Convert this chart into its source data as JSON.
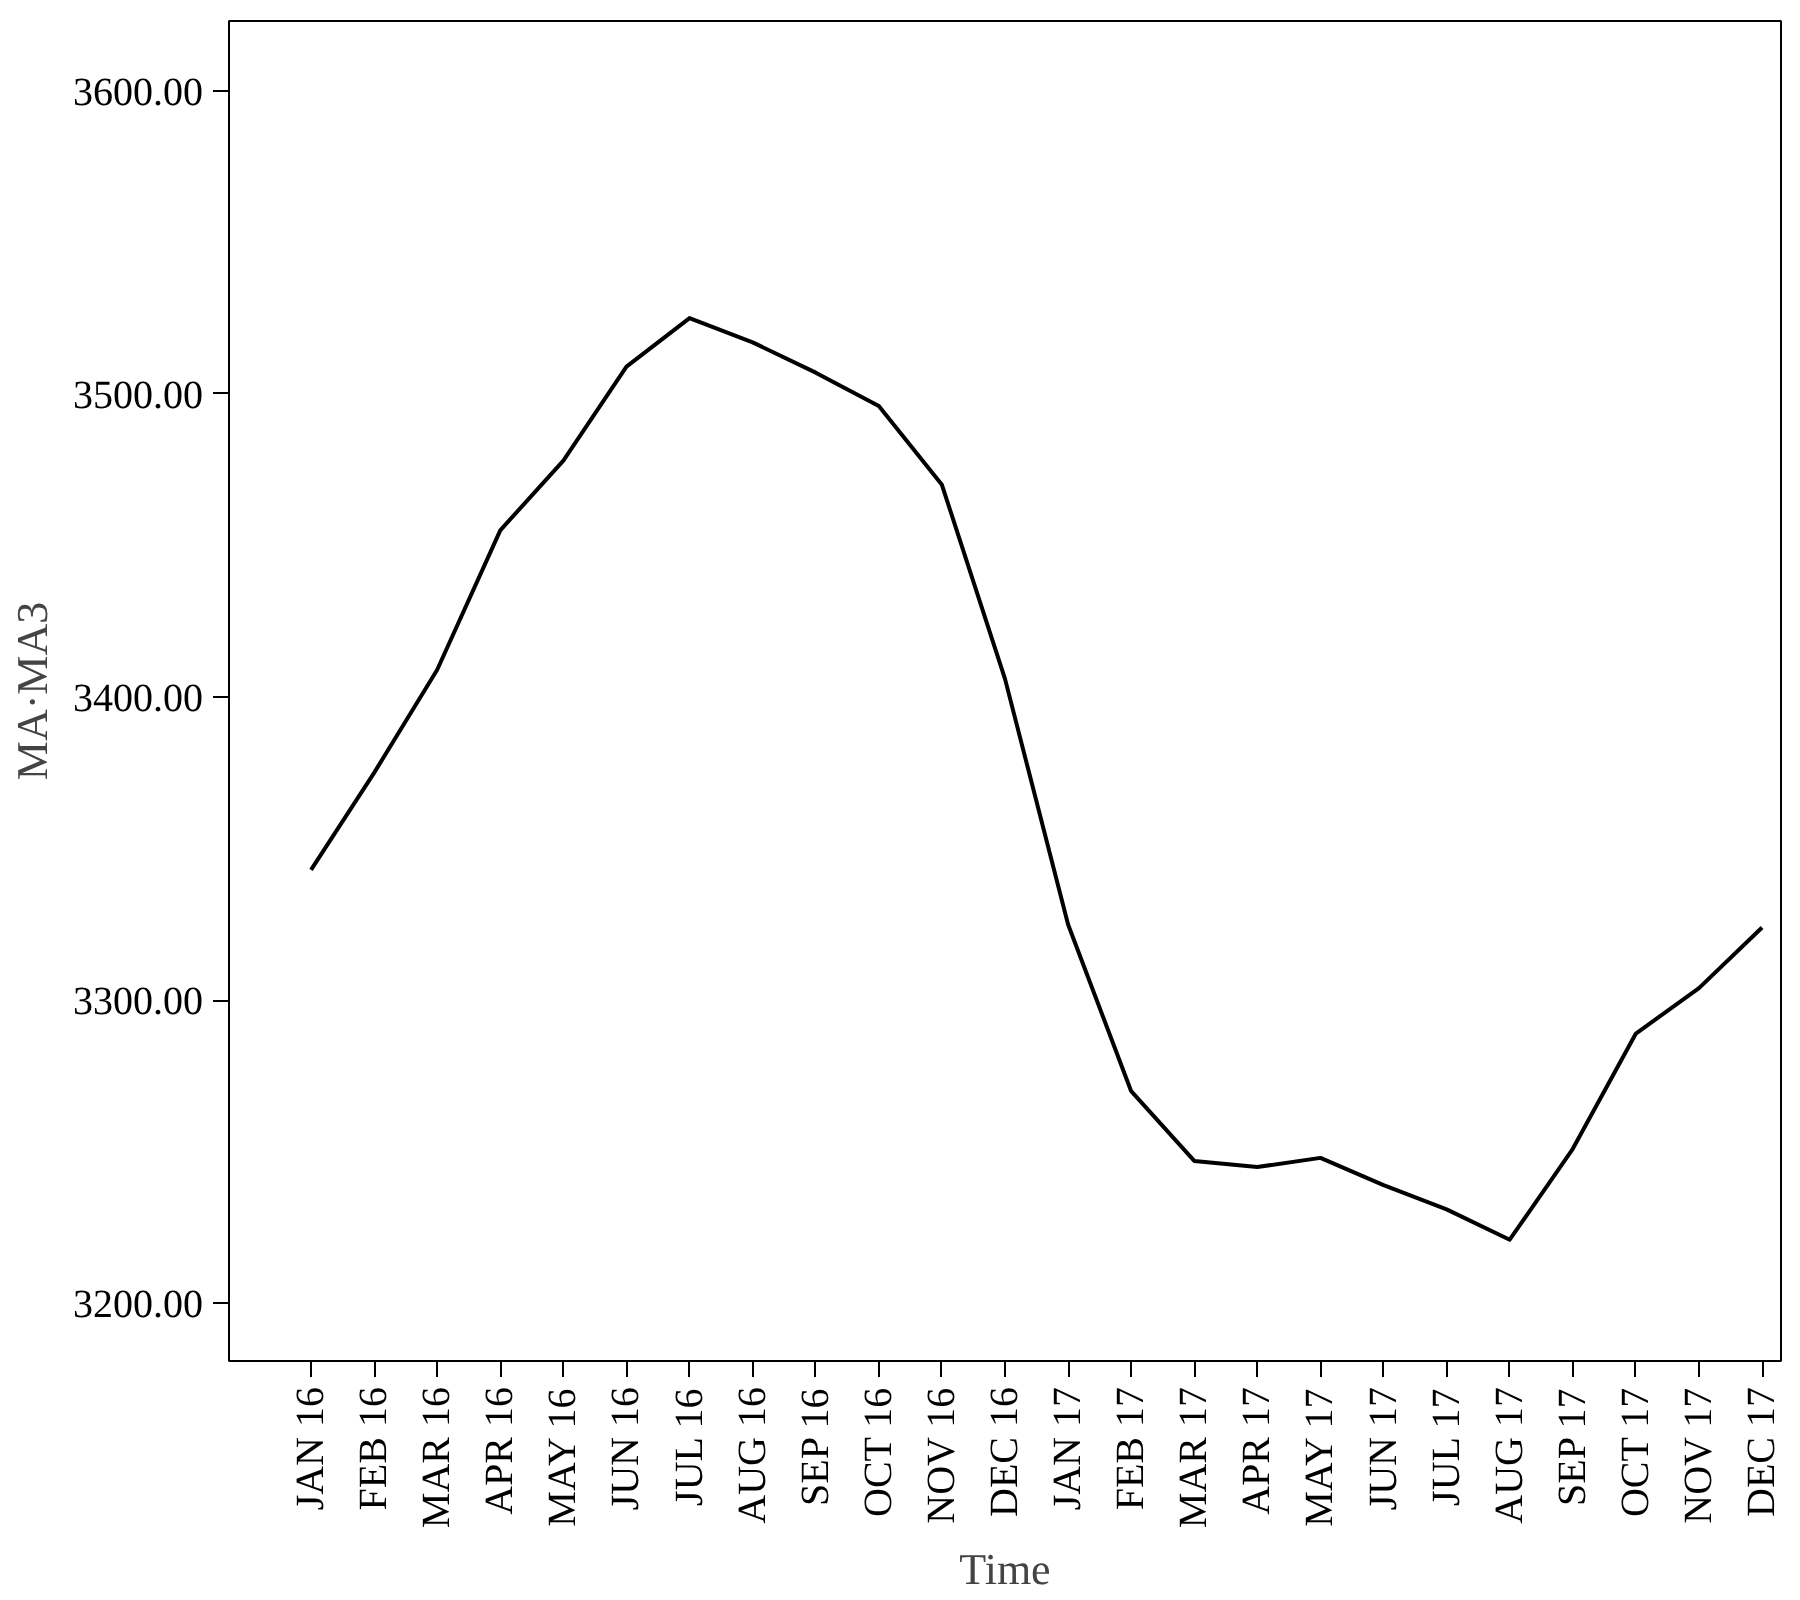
{
  "chart_data": {
    "type": "line",
    "xlabel": "Time",
    "ylabel": "MA·MA3",
    "categories": [
      "JAN 16",
      "FEB 16",
      "MAR 16",
      "APR 16",
      "MAY 16",
      "JUN 16",
      "JUL 16",
      "AUG 16",
      "SEP 16",
      "OCT 16",
      "NOV 16",
      "DEC 16",
      "JAN 17",
      "FEB 17",
      "MAR 17",
      "APR 17",
      "MAY 17",
      "JUN 17",
      "JUL 17",
      "AUG 17",
      "SEP 17",
      "OCT 17",
      "NOV 17",
      "DEC 17"
    ],
    "series": [
      {
        "color": "#000000",
        "values": [
          3343,
          3375,
          3409,
          3455,
          3478,
          3509,
          3525,
          3517,
          3507,
          3496,
          3470,
          3406,
          3325,
          3270,
          3247,
          3245,
          3248,
          3239,
          3231,
          3221,
          3251,
          3289,
          3304,
          3324
        ]
      }
    ],
    "ylim": [
      3181,
      3623
    ],
    "yticks": [
      {
        "value": 3200,
        "label": "3200.00"
      },
      {
        "value": 3300,
        "label": "3300.00"
      },
      {
        "value": 3400,
        "label": "3400.00"
      },
      {
        "value": 3500,
        "label": "3500.00"
      },
      {
        "value": 3600,
        "label": "3600.00"
      }
    ],
    "grid": false,
    "marker": "none",
    "line_style": "solid"
  }
}
